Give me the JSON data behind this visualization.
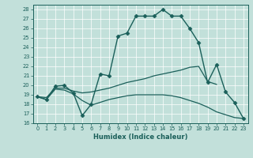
{
  "xlabel": "Humidex (Indice chaleur)",
  "ylabel": "",
  "background_color": "#c2e0da",
  "line_color": "#1a5f5a",
  "ylim": [
    16,
    28.5
  ],
  "xlim": [
    -0.5,
    23.5
  ],
  "yticks": [
    16,
    17,
    18,
    19,
    20,
    21,
    22,
    23,
    24,
    25,
    26,
    27,
    28
  ],
  "xticks": [
    0,
    1,
    2,
    3,
    4,
    5,
    6,
    7,
    8,
    9,
    10,
    11,
    12,
    13,
    14,
    15,
    16,
    17,
    18,
    19,
    20,
    21,
    22,
    23
  ],
  "series": [
    {
      "x": [
        0,
        1,
        2,
        3,
        4,
        5,
        6,
        7,
        8,
        9,
        10,
        11,
        12,
        13,
        14,
        15,
        16,
        17,
        18,
        19,
        20,
        21,
        22,
        23
      ],
      "y": [
        18.8,
        18.5,
        19.9,
        20.0,
        19.2,
        16.8,
        18.0,
        21.2,
        21.0,
        25.2,
        25.5,
        27.3,
        27.3,
        27.3,
        28.0,
        27.3,
        27.3,
        26.0,
        24.5,
        20.3,
        22.2,
        19.3,
        18.2,
        16.5
      ],
      "marker": "D",
      "markersize": 2.5,
      "linewidth": 1.0
    },
    {
      "x": [
        0,
        1,
        2,
        3,
        4,
        5,
        6,
        7,
        8,
        9,
        10,
        11,
        12,
        13,
        14,
        15,
        16,
        17,
        18,
        19,
        20
      ],
      "y": [
        18.8,
        18.7,
        19.7,
        19.7,
        19.4,
        19.2,
        19.3,
        19.5,
        19.7,
        20.0,
        20.3,
        20.5,
        20.7,
        21.0,
        21.2,
        21.4,
        21.6,
        21.9,
        22.0,
        20.4,
        20.1
      ],
      "marker": null,
      "markersize": 0,
      "linewidth": 0.9
    },
    {
      "x": [
        0,
        1,
        2,
        3,
        4,
        5,
        6,
        7,
        8,
        9,
        10,
        11,
        12,
        13,
        14,
        15,
        16,
        17,
        18,
        19,
        20,
        21,
        22,
        23
      ],
      "y": [
        18.8,
        18.5,
        19.6,
        19.5,
        19.1,
        18.4,
        17.9,
        18.2,
        18.5,
        18.7,
        18.9,
        19.0,
        19.0,
        19.0,
        19.0,
        18.9,
        18.7,
        18.4,
        18.1,
        17.7,
        17.2,
        16.9,
        16.6,
        16.5
      ],
      "marker": null,
      "markersize": 0,
      "linewidth": 0.9
    }
  ]
}
